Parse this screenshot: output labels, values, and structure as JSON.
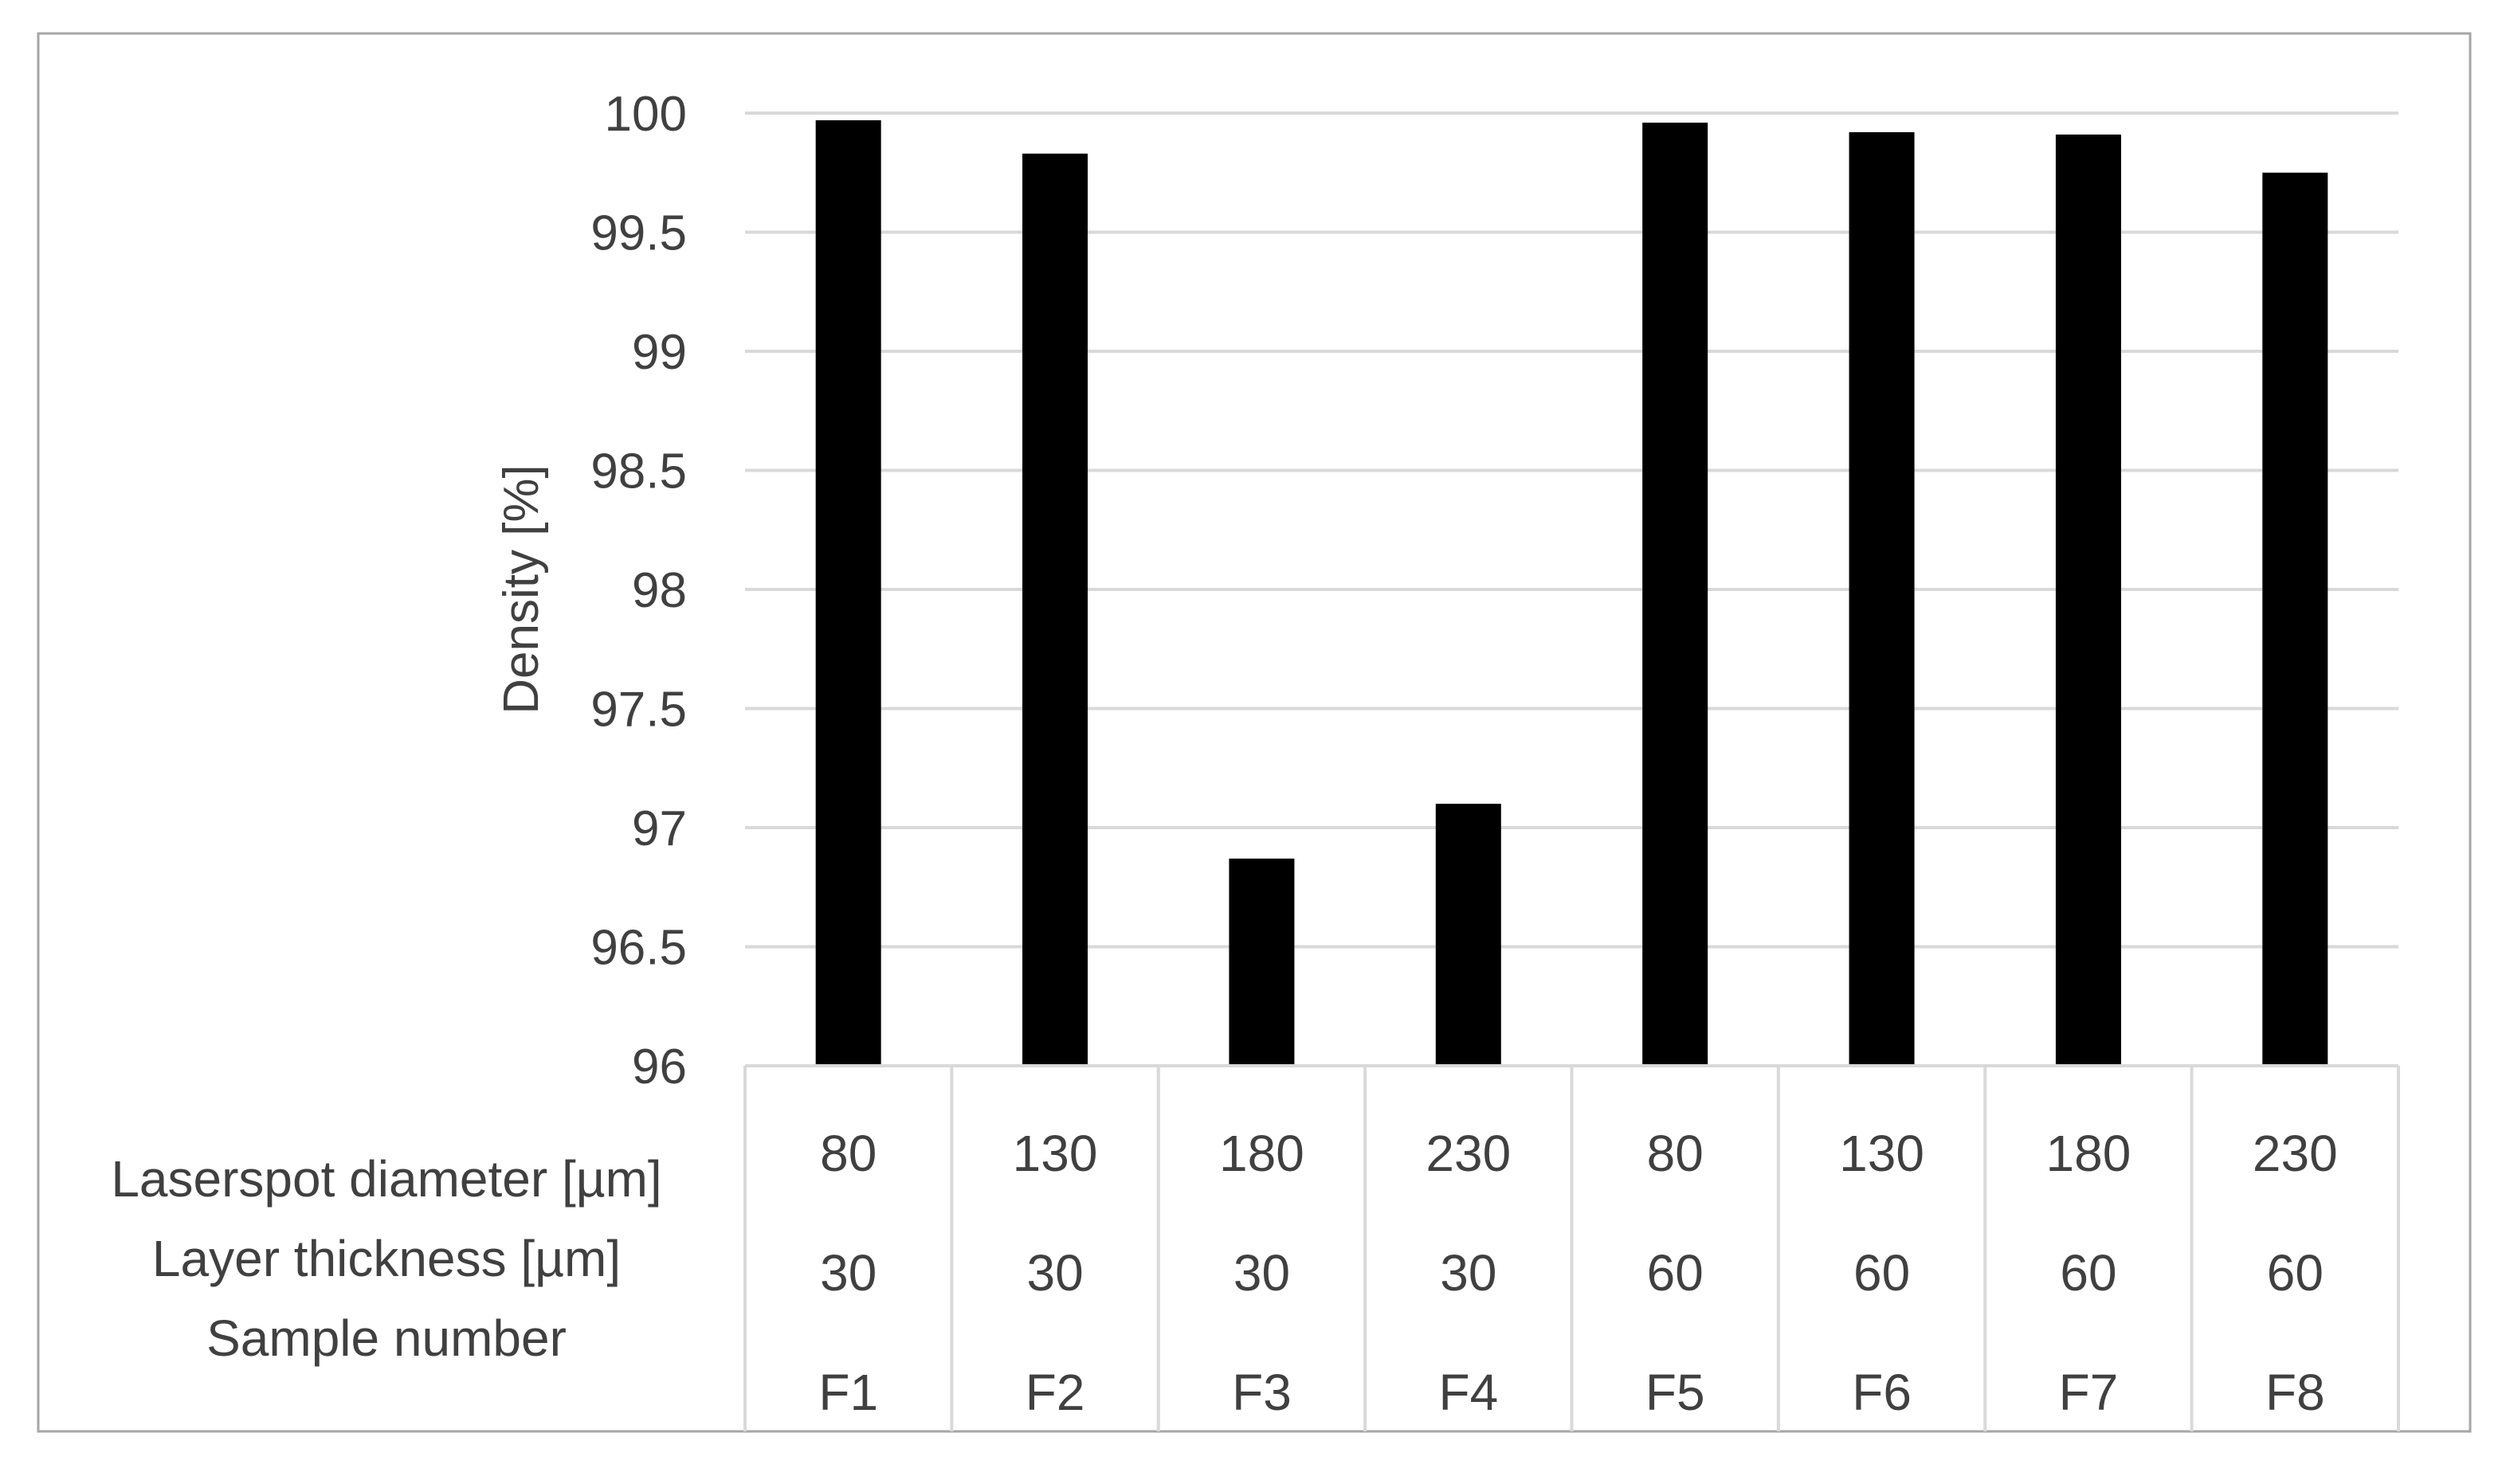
{
  "chart_data": {
    "type": "bar",
    "title": "",
    "ylabel": "Density [%]",
    "xlabel": "",
    "ylim": [
      96,
      100
    ],
    "yticks": [
      96,
      96.5,
      97,
      97.5,
      98,
      98.5,
      99,
      99.5,
      100
    ],
    "ytick_labels": [
      "96",
      "96.5",
      "97",
      "97.5",
      "98",
      "98.5",
      "99",
      "99.5",
      "100"
    ],
    "grid": true,
    "legend": "none",
    "categories": [
      "F1",
      "F2",
      "F3",
      "F4",
      "F5",
      "F6",
      "F7",
      "F8"
    ],
    "values": [
      99.97,
      99.83,
      96.87,
      97.1,
      99.96,
      99.92,
      99.91,
      99.75
    ],
    "bar_color": "#000000",
    "grid_color": "#d9d9d9",
    "table": {
      "rows": [
        {
          "label": "Laserspot diameter [µm]",
          "values": [
            "80",
            "130",
            "180",
            "230",
            "80",
            "130",
            "180",
            "230"
          ]
        },
        {
          "label": "Layer thickness [µm]",
          "values": [
            "30",
            "30",
            "30",
            "30",
            "60",
            "60",
            "60",
            "60"
          ]
        },
        {
          "label": "Sample number",
          "values": [
            "F1",
            "F2",
            "F3",
            "F4",
            "F5",
            "F6",
            "F7",
            "F8"
          ]
        }
      ]
    }
  }
}
